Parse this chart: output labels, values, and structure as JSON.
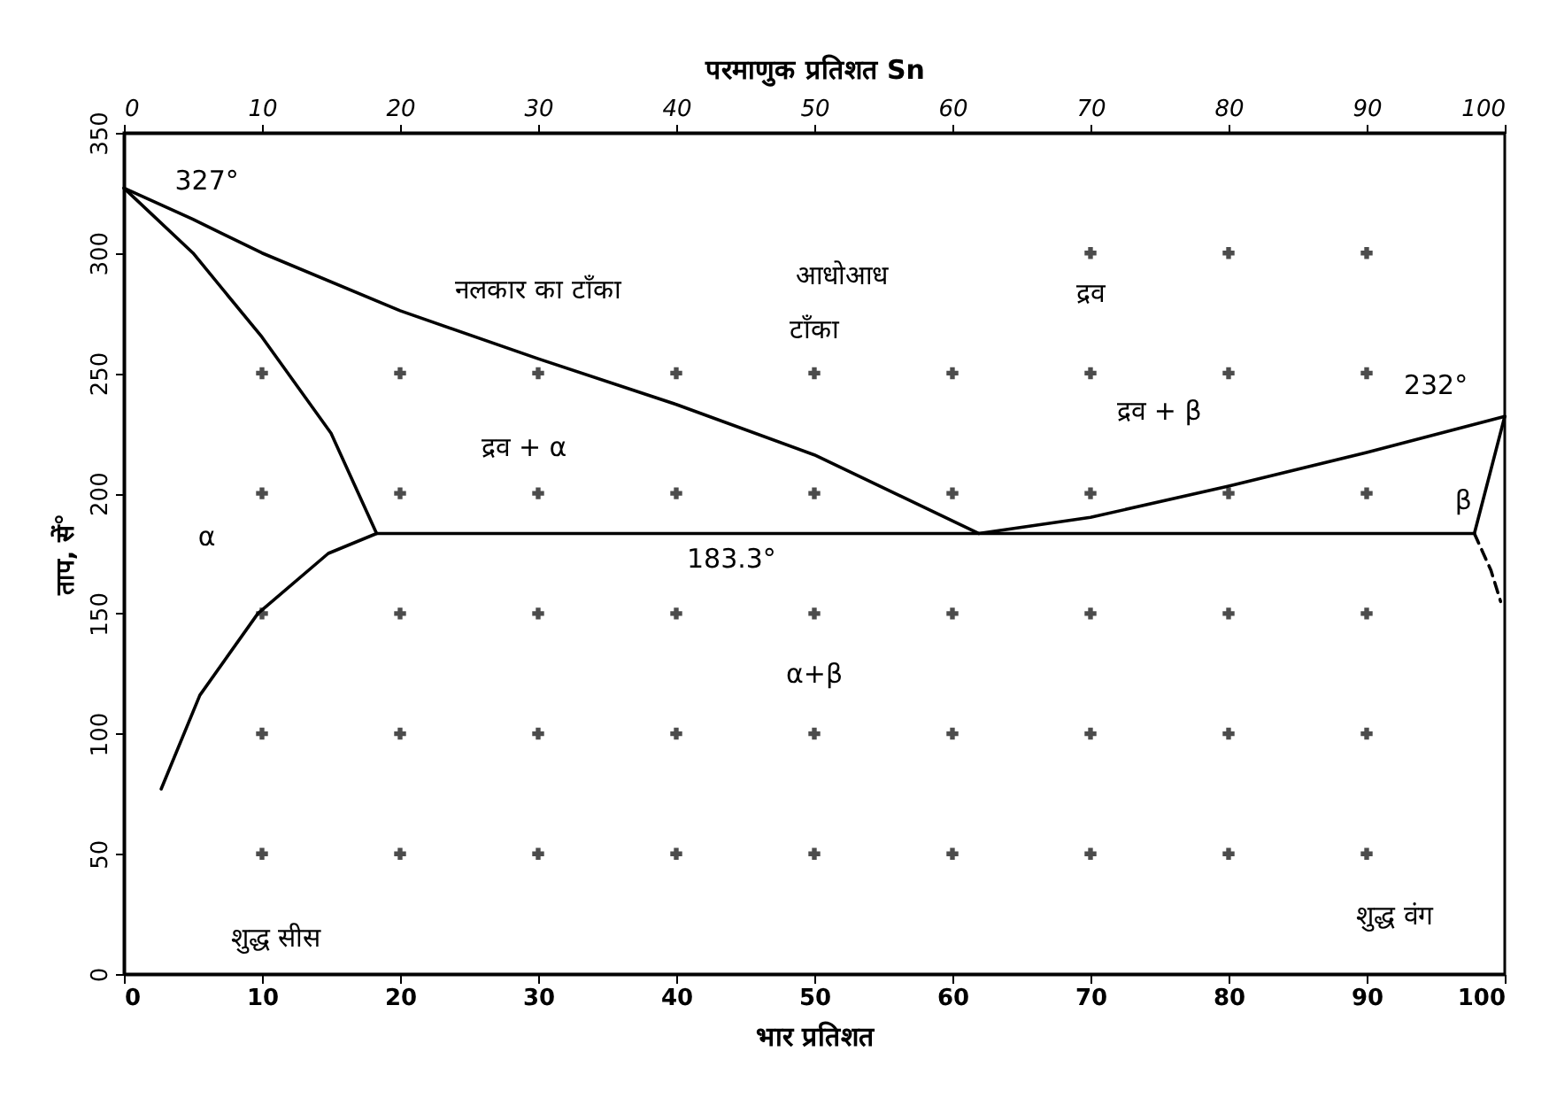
{
  "chart_data": {
    "type": "line",
    "xlabel": "भार प्रतिशत",
    "ylabel": "ताप, सें°",
    "x2label": "परमाणुक प्रतिशत Sn",
    "xlim": [
      0,
      100
    ],
    "xticks": [
      0,
      10,
      20,
      30,
      40,
      50,
      60,
      70,
      80,
      90,
      100
    ],
    "ylim": [
      0,
      350
    ],
    "yticks": [
      0,
      50,
      100,
      150,
      200,
      250,
      300,
      350
    ],
    "x2lim": [
      0,
      100
    ],
    "x2ticks": [
      0,
      10,
      20,
      30,
      40,
      50,
      60,
      70,
      80,
      90,
      100
    ],
    "line_style": "solid",
    "series": [
      {
        "color": "#000000",
        "x": [
          0,
          5,
          10,
          20,
          30,
          40,
          50,
          61.9,
          70,
          80,
          90,
          100
        ],
        "values": [
          327,
          314,
          300,
          276,
          256,
          237,
          216,
          183.3,
          190,
          203,
          217,
          232
        ]
      },
      {
        "color": "#000000",
        "x": [
          0,
          5,
          10,
          15,
          18.3,
          97.8,
          100
        ],
        "values": [
          327,
          300,
          265,
          225,
          183.3,
          183.3,
          232
        ]
      },
      {
        "color": "#000000",
        "x": [
          18.3,
          14.8,
          9.7,
          5.5,
          2.7
        ],
        "values": [
          183.3,
          175,
          150,
          116,
          77
        ]
      },
      {
        "color": "#000000",
        "line_style": "dashed",
        "x": [
          97.8,
          99,
          99.7
        ],
        "values": [
          183.3,
          168,
          155
        ]
      },
      {
        "type": "scatter",
        "marker": "cross",
        "color": "#000000",
        "x": [
          70,
          80,
          90,
          10,
          20,
          30,
          40,
          50,
          60,
          70,
          80,
          90,
          10,
          20,
          30,
          40,
          50,
          60,
          70,
          80,
          90,
          10,
          20,
          30,
          40,
          50,
          60,
          70,
          80,
          90,
          10,
          20,
          30,
          40,
          50,
          60,
          70,
          80,
          90,
          10,
          20,
          30,
          40,
          50,
          60,
          70,
          80,
          90
        ],
        "values": [
          300,
          300,
          300,
          250,
          250,
          250,
          250,
          250,
          250,
          250,
          250,
          250,
          200,
          200,
          200,
          200,
          200,
          200,
          200,
          200,
          200,
          150,
          150,
          150,
          150,
          150,
          150,
          150,
          150,
          150,
          100,
          100,
          100,
          100,
          100,
          100,
          100,
          100,
          100,
          50,
          50,
          50,
          50,
          50,
          50,
          50,
          50,
          50
        ]
      }
    ],
    "annotations": [
      "327°",
      "नलकार का टाँका",
      "आधोआध",
      "टाँका",
      "द्रव",
      "द्रव + α",
      "द्रव + β",
      "232°",
      "α",
      "β",
      "183.3°",
      "α+β",
      "शुद्ध सीस",
      "शुद्ध वंग"
    ]
  }
}
